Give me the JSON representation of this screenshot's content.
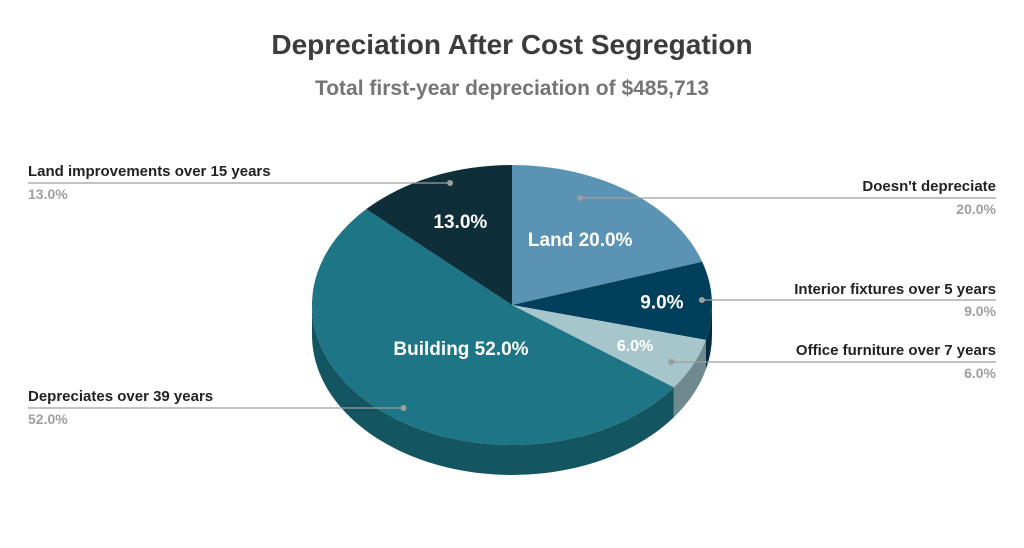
{
  "chart_data": {
    "type": "pie",
    "title": "Depreciation After Cost Segregation",
    "subtitle": "Total first-year depreciation of $485,713",
    "slices": [
      {
        "id": "land",
        "legend": "Doesn't depreciate",
        "inner_label": "Land 20.0%",
        "value": 20.0,
        "value_label": "20.0%",
        "color": "#5a93b3",
        "side_color": "#3f6f88",
        "legend_side": "right"
      },
      {
        "id": "interior",
        "legend": "Interior fixtures over 5 years",
        "inner_label": "9.0%",
        "value": 9.0,
        "value_label": "9.0%",
        "color": "#003f5c",
        "side_color": "#002c40",
        "legend_side": "right"
      },
      {
        "id": "furniture",
        "legend": "Office furniture over 7 years",
        "inner_label": "6.0%",
        "value": 6.0,
        "value_label": "6.0%",
        "color": "#a7c6cb",
        "side_color": "#6f8a8f",
        "legend_side": "right"
      },
      {
        "id": "building",
        "legend": "Depreciates over 39 years",
        "inner_label": "Building 52.0%",
        "value": 52.0,
        "value_label": "52.0%",
        "color": "#1e7585",
        "side_color": "#145562",
        "legend_side": "left"
      },
      {
        "id": "land-improvements",
        "legend": "Land improvements over 15 years",
        "inner_label": "13.0%",
        "value": 13.0,
        "value_label": "13.0%",
        "color": "#0e2f3a",
        "side_color": "#081e26",
        "legend_side": "left"
      }
    ]
  }
}
